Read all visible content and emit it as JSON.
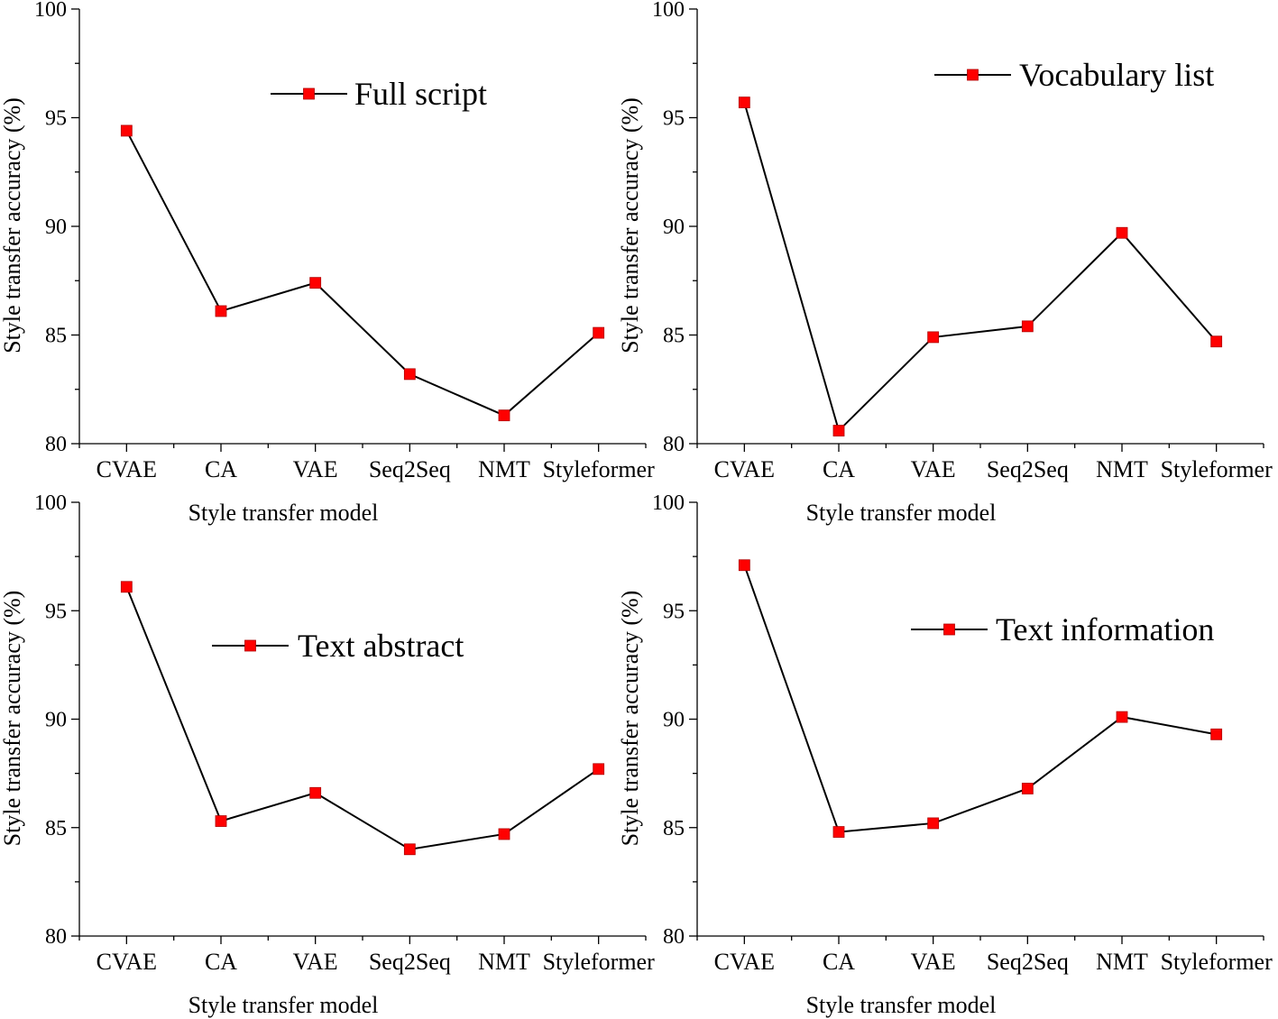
{
  "chart_data": [
    {
      "type": "line",
      "categories": [
        "CVAE",
        "CA",
        "VAE",
        "Seq2Seq",
        "NMT",
        "Styleformer"
      ],
      "series": [
        {
          "name": "Full script",
          "values": [
            94.4,
            86.1,
            87.4,
            83.2,
            81.3,
            85.1
          ],
          "color": "#ff0000"
        }
      ],
      "xlabel": "Style transfer model",
      "ylabel": "Style transfer accuracy (%)",
      "ylim": [
        80,
        100
      ],
      "yticks": [
        "80",
        "85",
        "90",
        "95",
        "100"
      ],
      "legend_position": "top-right"
    },
    {
      "type": "line",
      "categories": [
        "CVAE",
        "CA",
        "VAE",
        "Seq2Seq",
        "NMT",
        "Styleformer"
      ],
      "series": [
        {
          "name": "Vocabulary list",
          "values": [
            95.7,
            80.6,
            84.9,
            85.4,
            89.7,
            84.7
          ],
          "color": "#ff0000"
        }
      ],
      "xlabel": "Style transfer model",
      "ylabel": "Style transfer accuracy (%)",
      "ylim": [
        80,
        100
      ],
      "yticks": [
        "80",
        "85",
        "90",
        "95",
        "100"
      ],
      "legend_position": "top-right"
    },
    {
      "type": "line",
      "categories": [
        "CVAE",
        "CA",
        "VAE",
        "Seq2Seq",
        "NMT",
        "Styleformer"
      ],
      "series": [
        {
          "name": "Text abstract",
          "values": [
            96.1,
            85.3,
            86.6,
            84.0,
            84.7,
            87.7
          ],
          "color": "#ff0000"
        }
      ],
      "xlabel": "Style transfer model",
      "ylabel": "Style transfer accuracy (%)",
      "ylim": [
        80,
        100
      ],
      "yticks": [
        "80",
        "85",
        "90",
        "95",
        "100"
      ],
      "legend_position": "top-right"
    },
    {
      "type": "line",
      "categories": [
        "CVAE",
        "CA",
        "VAE",
        "Seq2Seq",
        "NMT",
        "Styleformer"
      ],
      "series": [
        {
          "name": "Text information",
          "values": [
            97.1,
            84.8,
            85.2,
            86.8,
            90.1,
            89.3
          ],
          "color": "#ff0000"
        }
      ],
      "xlabel": "Style transfer model",
      "ylabel": "Style transfer accuracy (%)",
      "ylim": [
        80,
        100
      ],
      "yticks": [
        "80",
        "85",
        "90",
        "95",
        "100"
      ],
      "legend_position": "top-right"
    }
  ]
}
